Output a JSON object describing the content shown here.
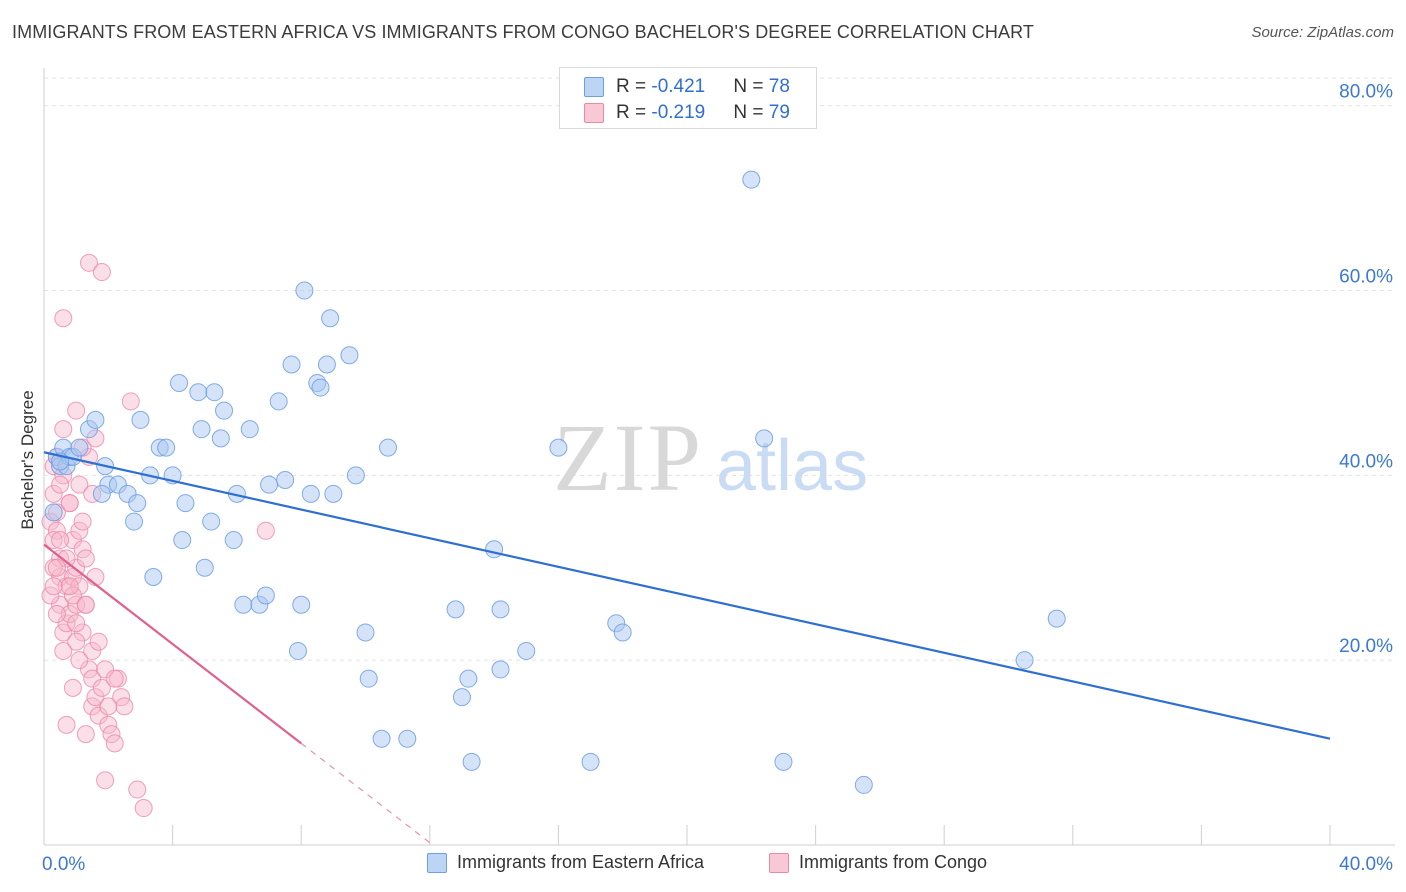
{
  "title": "IMMIGRANTS FROM EASTERN AFRICA VS IMMIGRANTS FROM CONGO BACHELOR'S DEGREE CORRELATION CHART",
  "source": "Source: ZipAtlas.com",
  "watermark": {
    "zip": "ZIP",
    "atlas": "atlas"
  },
  "legend_top": {
    "rows": [
      {
        "r_label": "R = ",
        "r_value": "-0.421",
        "n_label": "N = ",
        "n_value": "78"
      },
      {
        "r_label": "R = ",
        "r_value": "-0.219",
        "n_label": "N = ",
        "n_value": "79"
      }
    ]
  },
  "legend_bottom": [
    "Immigrants from Eastern Africa",
    "Immigrants from Congo"
  ],
  "colors": {
    "blue_fill": "#a9c8f2",
    "blue_stroke": "#6f9fe0",
    "blue_line": "#2f6fd1",
    "pink_fill": "#f6b8cb",
    "pink_stroke": "#ec88a8",
    "pink_line": "#e0608e",
    "axis_text": "#3d78d1",
    "grid": "#e3e3e3"
  },
  "chart_data": {
    "type": "scatter",
    "title": "IMMIGRANTS FROM EASTERN AFRICA VS IMMIGRANTS FROM CONGO BACHELOR'S DEGREE CORRELATION CHART",
    "xlabel": "",
    "ylabel": "Bachelor's Degree",
    "xlim": [
      0,
      40
    ],
    "ylim": [
      0,
      83
    ],
    "x_tick_labels": [
      "0.0%",
      "40.0%"
    ],
    "y_ticks": [
      20,
      40,
      60,
      80
    ],
    "y_tick_labels": [
      "20.0%",
      "40.0%",
      "60.0%",
      "80.0%"
    ],
    "grid": true,
    "legend_position": "top-center",
    "series": [
      {
        "name": "Immigrants from Eastern Africa",
        "color": "blue",
        "points": [
          [
            0.4,
            42
          ],
          [
            0.5,
            41
          ],
          [
            0.6,
            43
          ],
          [
            0.7,
            41
          ],
          [
            0.8,
            42
          ],
          [
            0.9,
            42
          ],
          [
            0.3,
            36
          ],
          [
            0.5,
            41.5
          ],
          [
            1.4,
            45
          ],
          [
            1.6,
            46
          ],
          [
            1.1,
            43
          ],
          [
            1.9,
            41
          ],
          [
            2.0,
            39
          ],
          [
            2.3,
            39
          ],
          [
            2.6,
            38
          ],
          [
            2.9,
            37
          ],
          [
            3.0,
            46
          ],
          [
            3.3,
            40
          ],
          [
            3.6,
            43
          ],
          [
            3.8,
            43
          ],
          [
            4.0,
            40
          ],
          [
            4.2,
            50
          ],
          [
            4.3,
            33
          ],
          [
            4.4,
            37
          ],
          [
            4.8,
            49
          ],
          [
            4.9,
            45
          ],
          [
            5.0,
            30
          ],
          [
            5.3,
            49
          ],
          [
            5.5,
            44
          ],
          [
            5.6,
            47
          ],
          [
            5.9,
            33
          ],
          [
            6.2,
            26
          ],
          [
            6.4,
            45
          ],
          [
            6.7,
            26
          ],
          [
            6.9,
            27
          ],
          [
            7.0,
            39
          ],
          [
            7.3,
            48
          ],
          [
            7.5,
            39.5
          ],
          [
            7.7,
            52
          ],
          [
            7.9,
            21
          ],
          [
            8.0,
            26
          ],
          [
            8.1,
            60
          ],
          [
            8.3,
            38
          ],
          [
            8.5,
            50
          ],
          [
            8.6,
            49.5
          ],
          [
            8.8,
            52
          ],
          [
            8.9,
            57
          ],
          [
            9.0,
            38
          ],
          [
            9.5,
            53
          ],
          [
            9.7,
            40
          ],
          [
            10.0,
            23
          ],
          [
            10.1,
            18
          ],
          [
            10.7,
            43
          ],
          [
            10.5,
            11.5
          ],
          [
            11.3,
            11.5
          ],
          [
            12.8,
            25.5
          ],
          [
            13.0,
            16
          ],
          [
            13.2,
            18
          ],
          [
            13.3,
            9
          ],
          [
            14.2,
            19
          ],
          [
            14.2,
            25.5
          ],
          [
            14.0,
            32
          ],
          [
            15.0,
            21
          ],
          [
            16.0,
            43
          ],
          [
            17.0,
            9
          ],
          [
            17.8,
            24
          ],
          [
            18.0,
            23
          ],
          [
            22.0,
            72
          ],
          [
            22.4,
            44
          ],
          [
            23.0,
            9
          ],
          [
            25.5,
            6.5
          ],
          [
            30.5,
            20
          ],
          [
            31.5,
            24.5
          ],
          [
            1.8,
            38
          ],
          [
            2.8,
            35
          ],
          [
            5.2,
            35
          ],
          [
            6.0,
            38
          ],
          [
            3.4,
            29
          ]
        ]
      },
      {
        "name": "Immigrants from Congo",
        "color": "pink",
        "points": [
          [
            0.2,
            35
          ],
          [
            0.3,
            38
          ],
          [
            0.3,
            41
          ],
          [
            0.4,
            34
          ],
          [
            0.4,
            42
          ],
          [
            0.5,
            29
          ],
          [
            0.5,
            26
          ],
          [
            0.5,
            31
          ],
          [
            0.6,
            40
          ],
          [
            0.6,
            23
          ],
          [
            0.7,
            28
          ],
          [
            0.7,
            24
          ],
          [
            0.8,
            25
          ],
          [
            0.8,
            37
          ],
          [
            0.9,
            29
          ],
          [
            0.9,
            33
          ],
          [
            1.0,
            26
          ],
          [
            1.0,
            30
          ],
          [
            1.1,
            39
          ],
          [
            1.1,
            28
          ],
          [
            1.2,
            23
          ],
          [
            1.2,
            32
          ],
          [
            1.3,
            26
          ],
          [
            1.3,
            31
          ],
          [
            1.4,
            42
          ],
          [
            1.4,
            19
          ],
          [
            1.5,
            18
          ],
          [
            1.5,
            15
          ],
          [
            1.6,
            16
          ],
          [
            1.7,
            14
          ],
          [
            1.8,
            17
          ],
          [
            1.9,
            19
          ],
          [
            2.0,
            13
          ],
          [
            2.1,
            12
          ],
          [
            2.2,
            11
          ],
          [
            2.3,
            18
          ],
          [
            2.4,
            16
          ],
          [
            2.5,
            15
          ],
          [
            1.0,
            47
          ],
          [
            1.2,
            43
          ],
          [
            1.6,
            44
          ],
          [
            2.7,
            48
          ],
          [
            1.1,
            34
          ],
          [
            0.6,
            57
          ],
          [
            1.4,
            63
          ],
          [
            1.8,
            62
          ],
          [
            0.3,
            33
          ],
          [
            0.4,
            36
          ],
          [
            0.5,
            39
          ],
          [
            0.7,
            31
          ],
          [
            0.9,
            27
          ],
          [
            1.0,
            22
          ],
          [
            1.1,
            20
          ],
          [
            1.3,
            26
          ],
          [
            1.5,
            21
          ],
          [
            1.7,
            22
          ],
          [
            1.9,
            7
          ],
          [
            2.9,
            6
          ],
          [
            3.1,
            4
          ],
          [
            6.9,
            34
          ],
          [
            0.2,
            27
          ],
          [
            0.3,
            30
          ],
          [
            0.4,
            25
          ],
          [
            0.6,
            21
          ],
          [
            0.8,
            28
          ],
          [
            1.2,
            35
          ],
          [
            1.5,
            38
          ],
          [
            0.9,
            17
          ],
          [
            0.7,
            13
          ],
          [
            1.3,
            12
          ],
          [
            2.0,
            15
          ],
          [
            0.5,
            33
          ],
          [
            0.6,
            45
          ],
          [
            0.8,
            37
          ],
          [
            1.0,
            24
          ],
          [
            1.6,
            29
          ],
          [
            2.2,
            18
          ],
          [
            0.4,
            30
          ],
          [
            0.3,
            28
          ]
        ]
      }
    ],
    "trend_lines": [
      {
        "series": "Immigrants from Eastern Africa",
        "x": [
          0,
          40
        ],
        "y": [
          42.5,
          11.5
        ]
      },
      {
        "series": "Immigrants from Congo",
        "x": [
          0,
          8
        ],
        "y": [
          32.5,
          11
        ],
        "dashed_extension_x": [
          8,
          12
        ]
      }
    ]
  }
}
